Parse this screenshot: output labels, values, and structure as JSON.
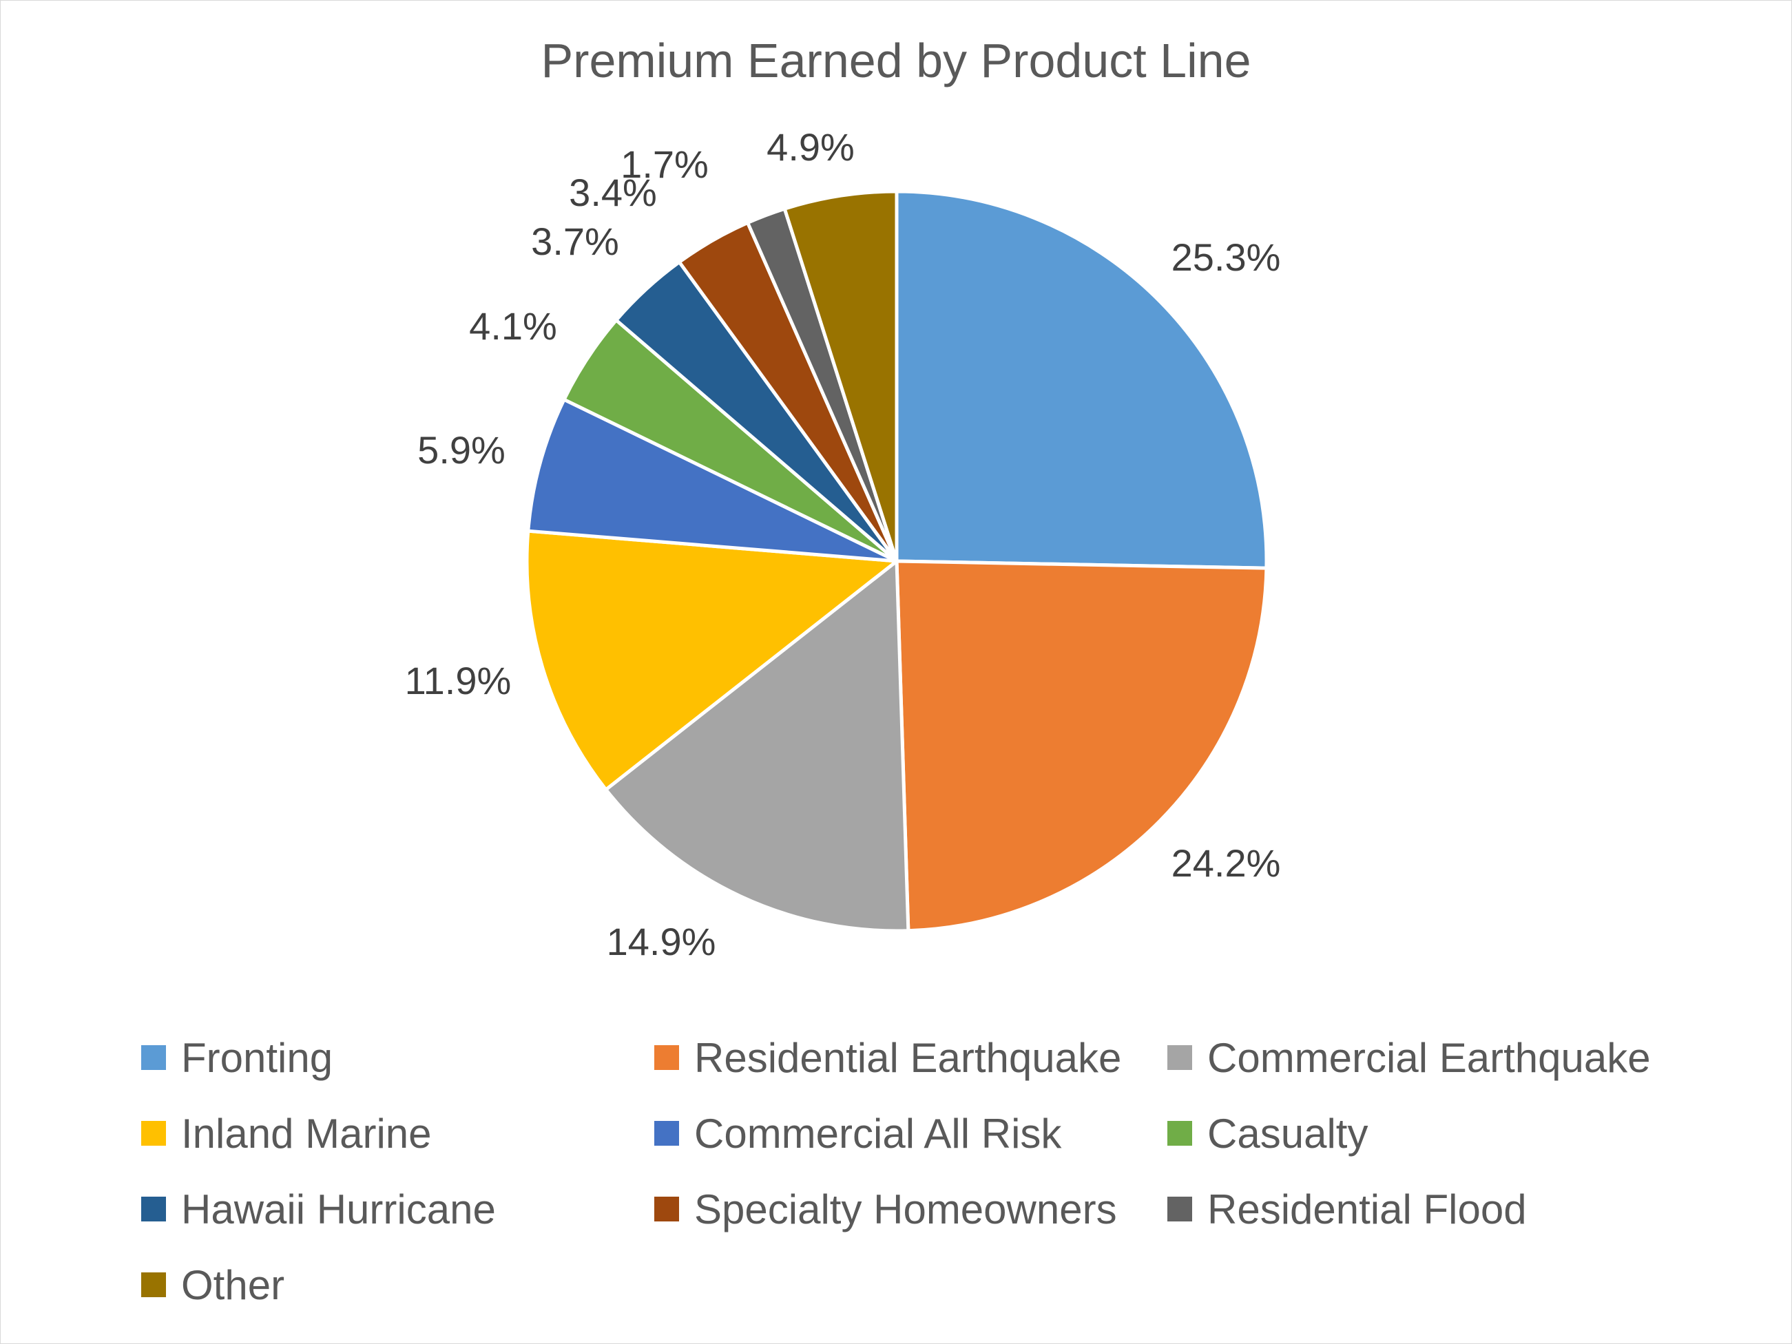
{
  "chart_data": {
    "type": "pie",
    "title": "Premium Earned by Product Line",
    "legend_position": "bottom",
    "slices": [
      {
        "name": "Fronting",
        "value": 25.3,
        "label": "25.3%",
        "color": "#5B9BD5"
      },
      {
        "name": "Residential Earthquake",
        "value": 24.2,
        "label": "24.2%",
        "color": "#ED7D31"
      },
      {
        "name": "Commercial Earthquake",
        "value": 14.9,
        "label": "14.9%",
        "color": "#A5A5A5"
      },
      {
        "name": "Inland Marine",
        "value": 11.9,
        "label": "11.9%",
        "color": "#FFC000"
      },
      {
        "name": "Commercial All Risk",
        "value": 5.9,
        "label": "5.9%",
        "color": "#4472C4"
      },
      {
        "name": "Casualty",
        "value": 4.1,
        "label": "4.1%",
        "color": "#70AD47"
      },
      {
        "name": "Hawaii Hurricane",
        "value": 3.7,
        "label": "3.7%",
        "color": "#255E91"
      },
      {
        "name": "Specialty Homeowners",
        "value": 3.4,
        "label": "3.4%",
        "color": "#9E480E"
      },
      {
        "name": "Residential Flood",
        "value": 1.7,
        "label": "1.7%",
        "color": "#636363"
      },
      {
        "name": "Other",
        "value": 4.9,
        "label": "4.9%",
        "color": "#997300"
      }
    ]
  }
}
